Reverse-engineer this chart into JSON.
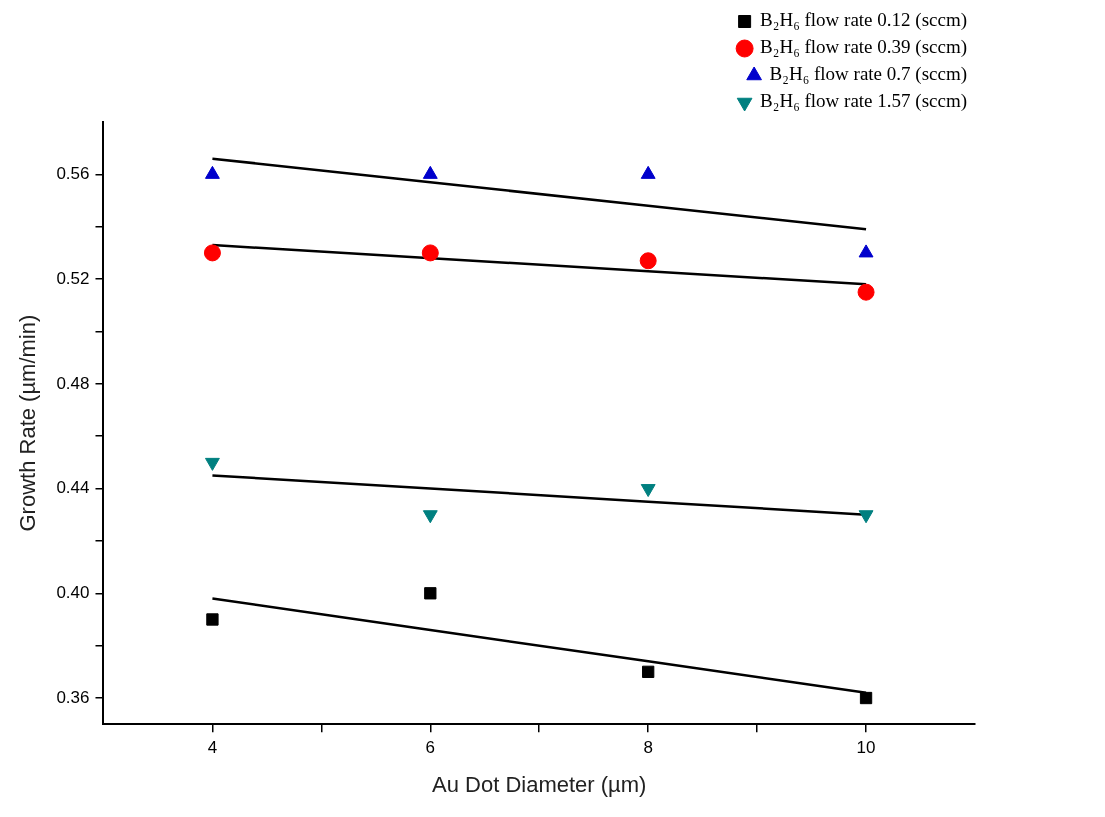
{
  "chart_data": {
    "type": "scatter",
    "xlabel": "Au Dot Diameter (µm)",
    "ylabel": "Growth Rate (µm/min)",
    "x": [
      4,
      6,
      8,
      10
    ],
    "series": [
      {
        "name": "B₂H₆ flow rate 0.12 (sccm)",
        "color": "#000000",
        "marker": "square",
        "values": [
          0.39,
          0.4,
          0.37,
          0.36
        ]
      },
      {
        "name": "B₂H₆ flow rate 0.39 (sccm)",
        "color": "#ff0000",
        "marker": "circle",
        "values": [
          0.53,
          0.53,
          0.527,
          0.515
        ]
      },
      {
        "name": "B₂H₆ flow rate 0.7 (sccm)",
        "color": "#0000cc",
        "marker": "triangle",
        "values": [
          0.56,
          0.56,
          0.56,
          0.53
        ]
      },
      {
        "name": "B₂H₆ flow rate 1.57 (sccm)",
        "color": "#008080",
        "marker": "triangle-down",
        "values": [
          0.45,
          0.43,
          0.44,
          0.43
        ]
      },
      {
        "type": "line",
        "color": "#000000",
        "marker": "none",
        "values": [
          0.398,
          0.386,
          0.374,
          0.362
        ]
      },
      {
        "type": "line",
        "color": "#000000",
        "marker": "none",
        "values": [
          0.533,
          null,
          0.523,
          0.518
        ]
      },
      {
        "type": "line",
        "color": "#000000",
        "marker": "none",
        "values": [
          0.566,
          0.557,
          0.548,
          0.539
        ]
      },
      {
        "type": "line",
        "color": "#000000",
        "marker": "none",
        "values": [
          0.445,
          0.44,
          0.435,
          0.43
        ]
      }
    ],
    "xlim": [
      3,
      11
    ],
    "xticks": [
      4,
      {
        "value": 5,
        "label": null
      },
      6,
      {
        "value": 7,
        "label": null
      },
      8,
      {
        "value": 9,
        "label": null
      },
      10
    ],
    "ylim": [
      0.35,
      0.58
    ],
    "yticks": [
      0.36,
      {
        "value": 0.38,
        "label": null
      },
      {
        "value": 0.4,
        "label": "0.40"
      },
      {
        "value": 0.42,
        "label": null
      },
      0.44,
      {
        "value": 0.46,
        "label": null
      },
      0.48,
      {
        "value": 0.5,
        "label": null
      },
      0.52,
      {
        "value": 0.54,
        "label": null
      },
      0.56
    ],
    "legend": "top right",
    "grid": false
  }
}
